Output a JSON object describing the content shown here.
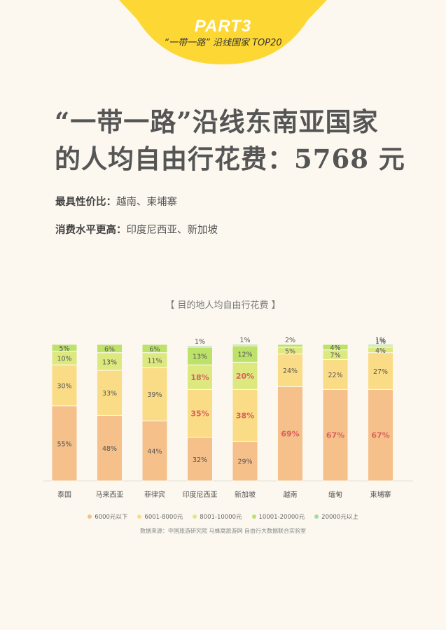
{
  "header": {
    "part": "PART3",
    "subtitle": "“一带一路” 沿线国家 TOP20"
  },
  "title": {
    "line1": "“一带一路”沿线东南亚国家",
    "line2": "的人均自由行花费：5768 元"
  },
  "notes": [
    {
      "label": "最具性价比：",
      "value": "越南、柬埔寨"
    },
    {
      "label": "消费水平更高：",
      "value": "印度尼西亚、新加坡"
    }
  ],
  "chart_title": "【 目的地人均自由行花费 】",
  "source": "数据来源：中国旅游研究院 马蜂窝旅游网 自由行大数据联合实验室",
  "colors": {
    "bands": [
      "#f5c08a",
      "#fbdc86",
      "#dde97f",
      "#bde26a",
      "#a6d9a2"
    ],
    "header": "#fdd835",
    "highlight_label": "#d9625a",
    "normal_label": "#555555"
  },
  "chart_data": {
    "type": "bar",
    "stacked": true,
    "categories": [
      "泰国",
      "马来西亚",
      "菲律宾",
      "印度尼西亚",
      "新加坡",
      "越南",
      "缅甸",
      "柬埔寨"
    ],
    "series": [
      {
        "name": "6000元以下",
        "values": [
          55,
          48,
          44,
          32,
          29,
          69,
          67,
          67
        ]
      },
      {
        "name": "6001-8000元",
        "values": [
          30,
          33,
          39,
          35,
          38,
          24,
          22,
          27
        ]
      },
      {
        "name": "8001-10000元",
        "values": [
          10,
          13,
          11,
          18,
          20,
          5,
          7,
          4
        ]
      },
      {
        "name": "10001-20000元",
        "values": [
          5,
          6,
          6,
          13,
          12,
          2,
          4,
          1
        ]
      },
      {
        "name": "20000元以上",
        "values": [
          0,
          0,
          0,
          1,
          1,
          0,
          0,
          1
        ]
      }
    ],
    "highlighted": [
      {
        "category": "印度尼西亚",
        "series": [
          "6001-8000元",
          "8001-10000元"
        ]
      },
      {
        "category": "新加坡",
        "series": [
          "6001-8000元",
          "8001-10000元"
        ]
      },
      {
        "category": "越南",
        "series": [
          "6000元以下"
        ]
      },
      {
        "category": "缅甸",
        "series": [
          "6000元以下"
        ]
      },
      {
        "category": "柬埔寨",
        "series": [
          "6000元以下"
        ]
      }
    ],
    "legend_position": "bottom",
    "ylim": [
      0,
      100
    ]
  }
}
